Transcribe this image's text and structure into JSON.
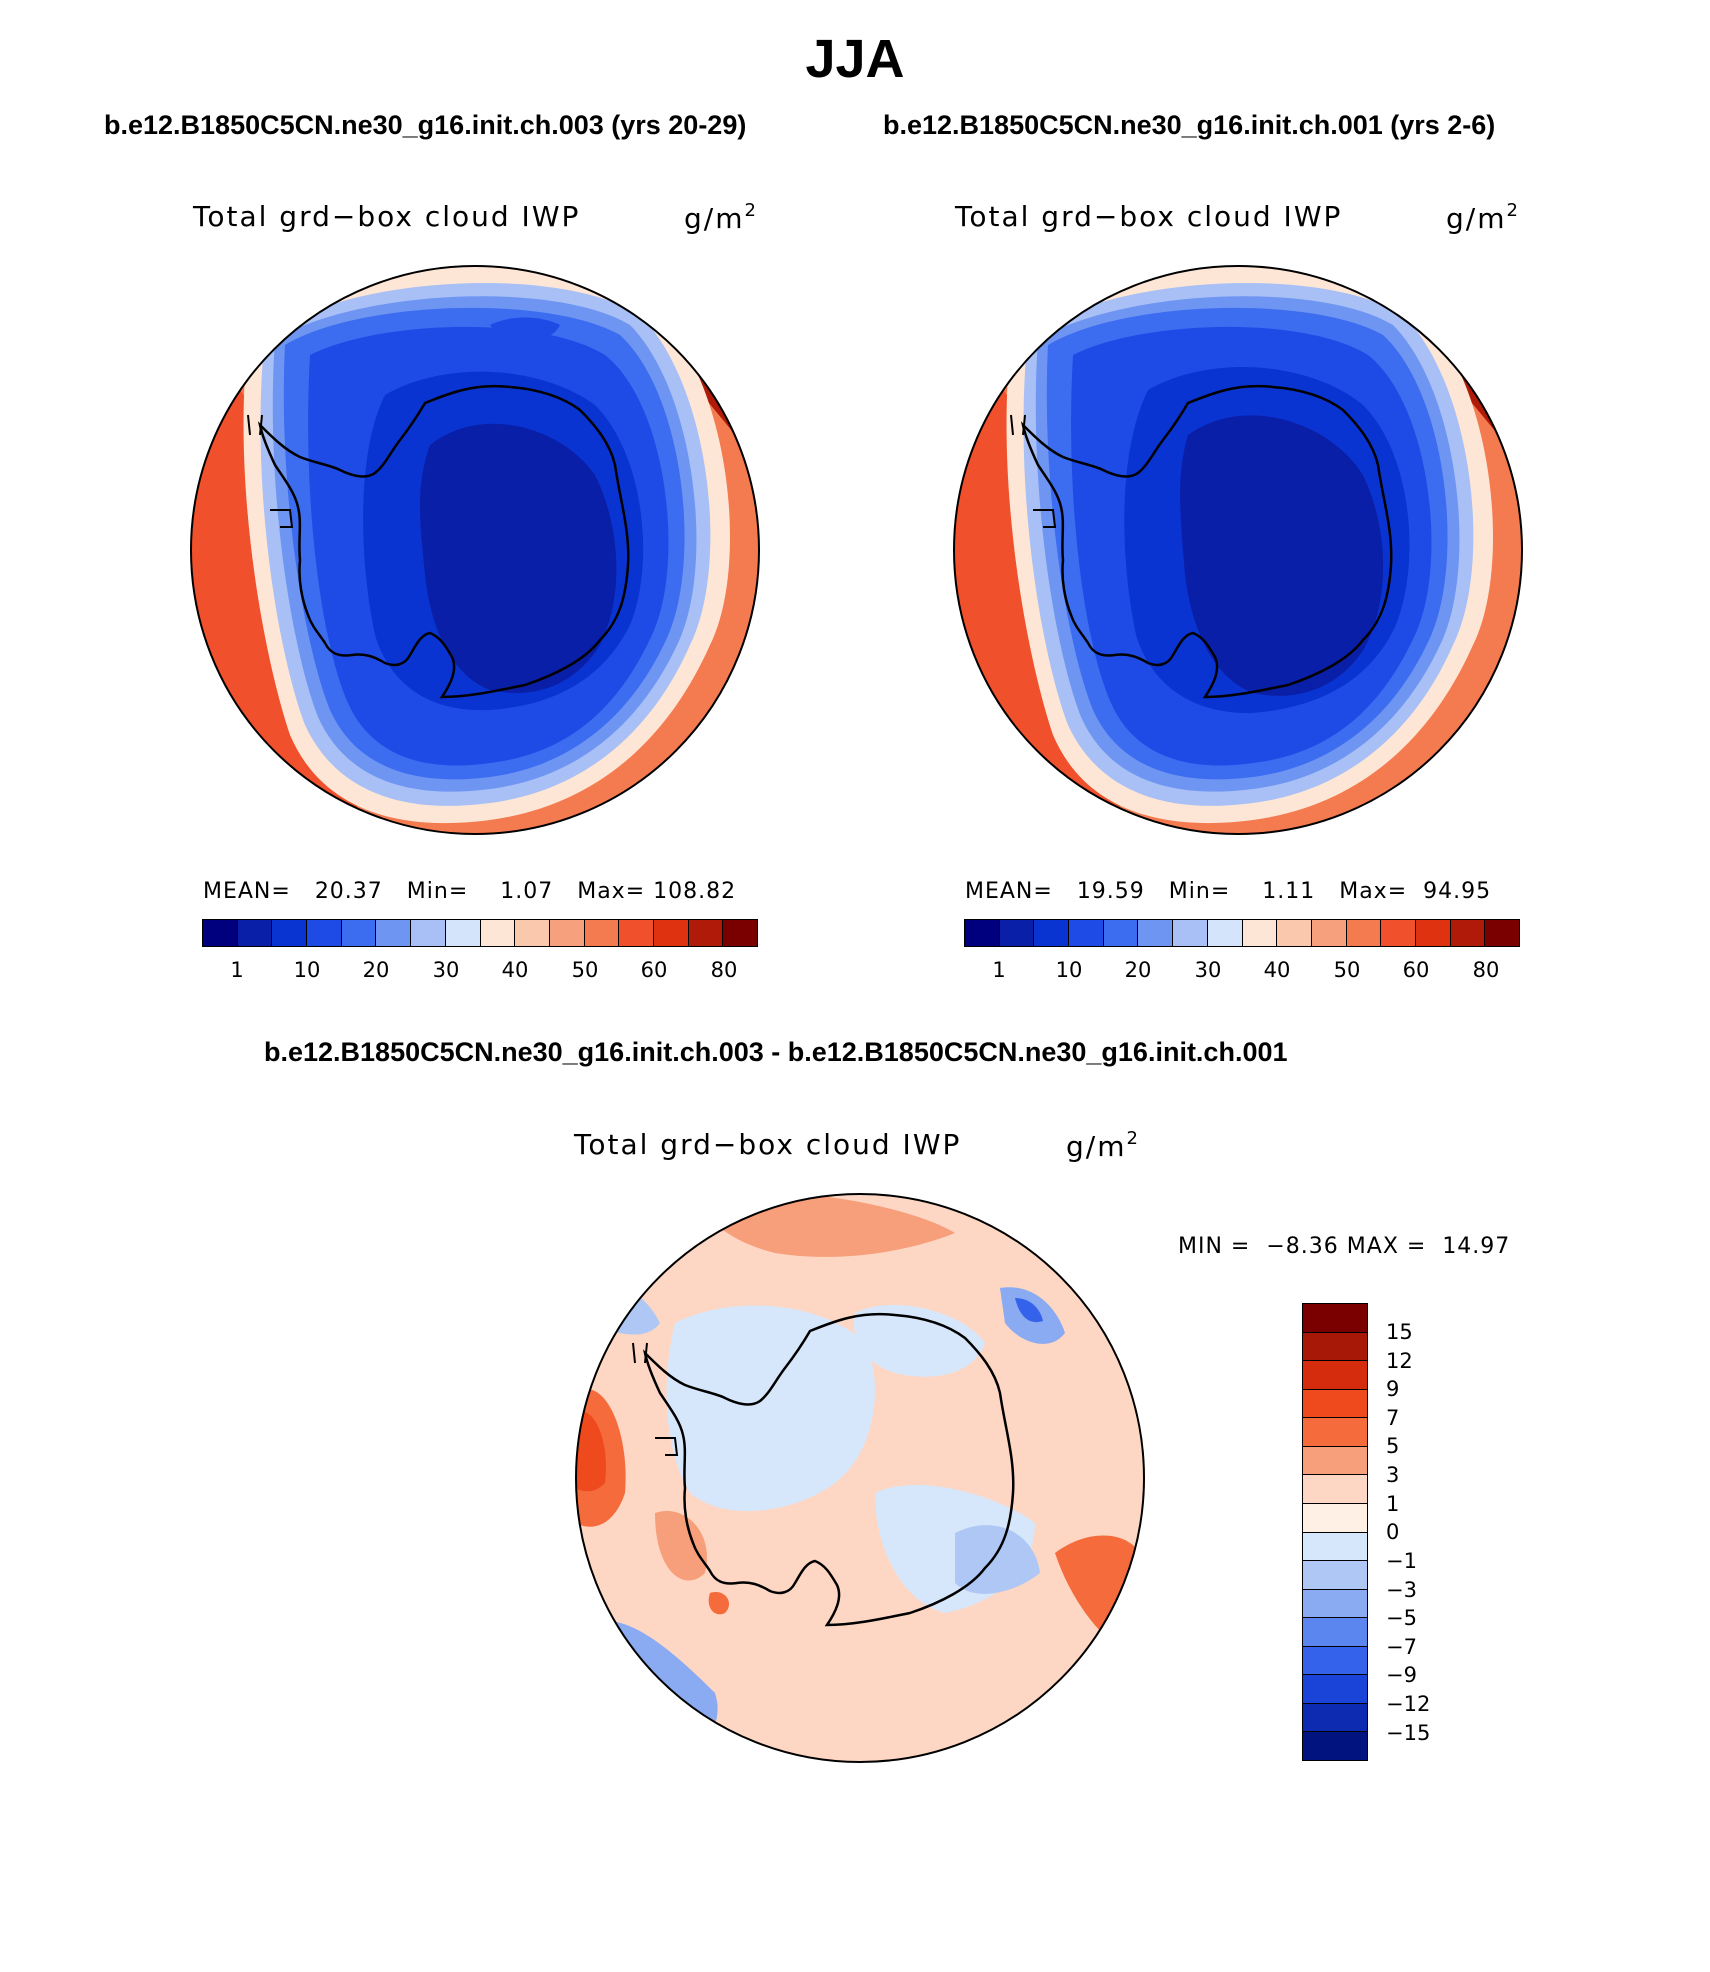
{
  "title": "JJA",
  "panels": [
    {
      "case": "b.e12.B1850C5CN.ne30_g16.init.ch.003 (yrs 20-29)",
      "variable": "Total grd−box cloud IWP",
      "units_base": "g/m",
      "units_exp": "2",
      "mean_label": "MEAN=",
      "mean": "20.37",
      "min_label": "Min=",
      "min": "1.07",
      "max_label": "Max=",
      "max": "108.82",
      "colorbar_ticks": [
        "1",
        "10",
        "20",
        "30",
        "40",
        "50",
        "60",
        "80"
      ]
    },
    {
      "case": "b.e12.B1850C5CN.ne30_g16.init.ch.001 (yrs 2-6)",
      "variable": "Total grd−box cloud IWP",
      "units_base": "g/m",
      "units_exp": "2",
      "mean_label": "MEAN=",
      "mean": "19.59",
      "min_label": "Min=",
      "min": "1.11",
      "max_label": "Max=",
      "max": "94.95",
      "colorbar_ticks": [
        "1",
        "10",
        "20",
        "30",
        "40",
        "50",
        "60",
        "80"
      ]
    }
  ],
  "diff": {
    "case": "b.e12.B1850C5CN.ne30_g16.init.ch.003 - b.e12.B1850C5CN.ne30_g16.init.ch.001",
    "variable": "Total grd−box cloud IWP",
    "units_base": "g/m",
    "units_exp": "2",
    "min_label": "MIN =",
    "min": "−8.36",
    "max_label": "MAX =",
    "max": "14.97",
    "colorbar_ticks": [
      "15",
      "12",
      "9",
      "7",
      "5",
      "3",
      "1",
      "0",
      "−1",
      "−3",
      "−5",
      "−7",
      "−9",
      "−12",
      "−15"
    ]
  },
  "colors": {
    "field_scale": [
      "#00007f",
      "#0a1fa8",
      "#0a34d2",
      "#1e4be6",
      "#3c6cf0",
      "#6e95f2",
      "#a8c0f5",
      "#d4e4fb",
      "#fde6d6",
      "#fac8ad",
      "#f7a07e",
      "#f47a50",
      "#f0502b",
      "#de3211",
      "#b01a08",
      "#7a0000"
    ],
    "diff_scale": [
      "#7a0000",
      "#a81806",
      "#d42c0c",
      "#ee4a1e",
      "#f56b3c",
      "#f79e7a",
      "#fdd7c3",
      "#d6e7fb",
      "#afc7f5",
      "#8aaaf2",
      "#5c86ef",
      "#3462ea",
      "#1a43d8",
      "#0d2bb0",
      "#00137f"
    ]
  }
}
